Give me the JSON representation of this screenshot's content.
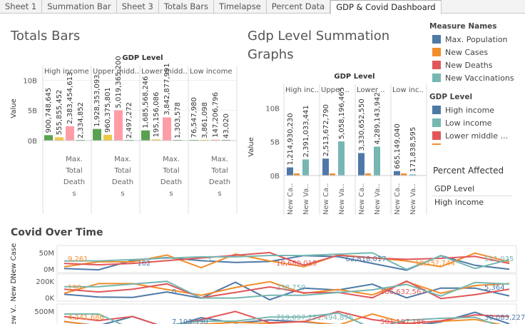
{
  "tabs": [
    "Sheet 1",
    "Summation Bar",
    "Sheet 3",
    "Totals Bars",
    "Timelapse",
    "Percent Data",
    "GDP & Covid Dashboard"
  ],
  "active_tab": "GDP & Covid Dashboard",
  "colors": {
    "max_population": "#4e79a7",
    "new_cases": "#f28e2b",
    "new_deaths": "#e15759",
    "new_vaccinations": "#76b7b2",
    "high_income": "#4e79a7",
    "low_income": "#76b7b2",
    "lower_middle": "#e15759",
    "upper_middle": "#f28e2b",
    "green": "#59a14f",
    "yellow": "#edc948",
    "pink": "#ff9da7"
  },
  "totals_bars": {
    "title": "Totals Bars",
    "header": "GDP Level",
    "columns": [
      "High income",
      "Upper midd..",
      "Lower midd..",
      "Low income"
    ],
    "ylabel": "Value",
    "yticks": [
      "10B",
      "5B",
      "0B"
    ],
    "bottom_label": [
      "Max.",
      "Total",
      "Death",
      "s"
    ],
    "chart_data": {
      "type": "bar",
      "groups": [
        {
          "name": "High income",
          "values": [
            900748645,
            555855452,
            2383454613,
            2334852
          ]
        },
        {
          "name": "Upper midd..",
          "values": [
            1928353093,
            960375801,
            5019365200,
            2497272
          ]
        },
        {
          "name": "Lower midd..",
          "values": [
            1685568246,
            195156086,
            3842877991,
            1303578
          ]
        },
        {
          "name": "Low income",
          "values": [
            76547980,
            3861098,
            147206796,
            43020
          ]
        }
      ],
      "value_labels": [
        [
          "900,748,645",
          "555,855,452",
          "2,383,454,613",
          "2,334,852"
        ],
        [
          "1,928,353,093",
          "960,375,801",
          "5,019,365,200",
          "2,497,272"
        ],
        [
          "1,685,568,246",
          "195,156,086",
          "3,842,877,991",
          "1,303,578"
        ],
        [
          "76,547,980",
          "3,861,098",
          "147,206,796",
          "43,020"
        ]
      ],
      "ylim": [
        0,
        11000000000
      ]
    }
  },
  "summation": {
    "title_line1": "Gdp Level Summation",
    "title_line2": "Graphs",
    "header": "GDP Level",
    "columns": [
      "High inc..",
      "Upper ..",
      "Lower ..",
      "Low inc.."
    ],
    "ylabel": "Value",
    "yticks": [
      "10B",
      "5B",
      "0B"
    ],
    "xlabels": [
      "New Ca..",
      "New Va.."
    ],
    "chart_data": {
      "type": "bar",
      "groups": [
        {
          "name": "High inc..",
          "values": [
            1214930230,
            2391033441
          ],
          "labels": [
            "1,214,930,230",
            "2,391,033,441"
          ]
        },
        {
          "name": "Upper ..",
          "values": [
            2513672790,
            5058196465
          ],
          "labels": [
            "2,513,672,790",
            "5,058,196,465"
          ]
        },
        {
          "name": "Lower ..",
          "values": [
            3330652550,
            4289143942
          ],
          "labels": [
            "3,330,652,550",
            "4,289,143,942"
          ]
        },
        {
          "name": "Low inc..",
          "values": [
            665149040,
            171838595
          ],
          "labels": [
            "665,149,040",
            "171,838,595"
          ]
        }
      ],
      "ylim": [
        0,
        11000000000
      ]
    }
  },
  "legend": {
    "measure_header": "Measure Names",
    "measures": [
      "Max. Population",
      "New Cases",
      "New Deaths",
      "New Vaccinations"
    ],
    "gdp_header": "GDP Level",
    "gdp_items": [
      "High income",
      "Low income",
      "Lower middle ..."
    ]
  },
  "percent_affected": {
    "title": "Percent Affected",
    "filter_label": "GDP Level",
    "filter_value": "High income"
  },
  "covid": {
    "title": "Covid Over Time",
    "rows": [
      {
        "label": "New Cases",
        "ticks": [
          "50M",
          "0M"
        ],
        "annotations": [
          "9,261",
          "102",
          "5",
          "10,680,015",
          "62,818,017",
          "18,15?,744",
          "511,035"
        ]
      },
      {
        "label": "New D..",
        "ticks": [
          "200K",
          "0K"
        ],
        "annotations": [
          "190",
          "0",
          "238,750",
          "186,632,567",
          "5,364"
        ]
      },
      {
        "label": "New V..",
        "ticks": [
          "500M",
          "0M"
        ],
        "annotations": [
          "4,241,686",
          "7,103,590",
          "719,097,251,494,876",
          "501,197,186",
          "30,083,227"
        ]
      }
    ]
  }
}
